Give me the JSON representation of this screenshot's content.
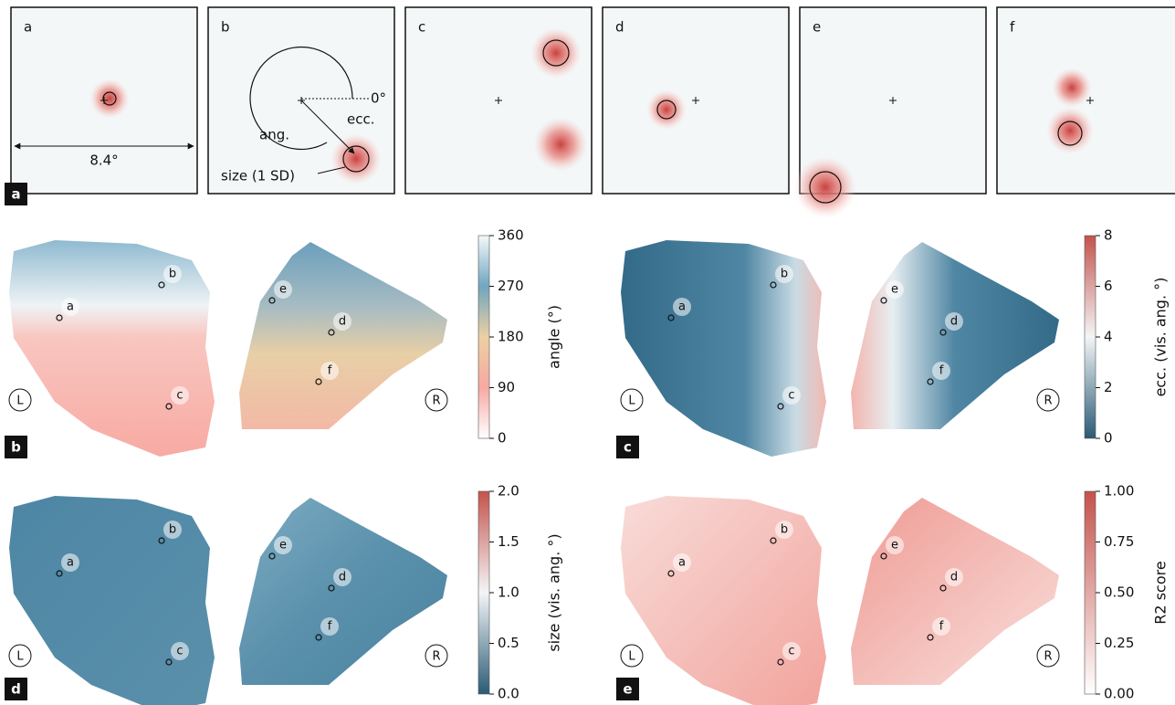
{
  "panel_labels": [
    "a",
    "b",
    "c",
    "d",
    "e"
  ],
  "rf_panels": [
    "a",
    "b",
    "c",
    "d",
    "e",
    "f"
  ],
  "rf_annotations": {
    "width": "8.4°",
    "zero": "0°",
    "ecc": "ecc.",
    "ang": "ang.",
    "size": "size (1 SD)"
  },
  "maps": [
    {
      "colorbar_label": "angle (°)",
      "ticks": [
        "0",
        "90",
        "180",
        "270",
        "360"
      ],
      "hemispheres": [
        "L",
        "R"
      ],
      "points": [
        "a",
        "b",
        "c",
        "d",
        "e",
        "f"
      ]
    },
    {
      "colorbar_label": "ecc. (vis. ang. °)",
      "ticks": [
        "0",
        "2",
        "4",
        "6",
        "8"
      ],
      "hemispheres": [
        "L",
        "R"
      ],
      "points": [
        "a",
        "b",
        "c",
        "d",
        "e",
        "f"
      ]
    },
    {
      "colorbar_label": "size (vis. ang. °)",
      "ticks": [
        "0.0",
        "0.5",
        "1.0",
        "1.5",
        "2.0"
      ],
      "hemispheres": [
        "L",
        "R"
      ],
      "points": [
        "a",
        "b",
        "c",
        "d",
        "e",
        "f"
      ]
    },
    {
      "colorbar_label": "R2 score",
      "ticks": [
        "0.00",
        "0.25",
        "0.50",
        "0.75",
        "1.00"
      ],
      "hemispheres": [
        "L",
        "R"
      ],
      "points": [
        "a",
        "b",
        "c",
        "d",
        "e",
        "f"
      ]
    }
  ]
}
